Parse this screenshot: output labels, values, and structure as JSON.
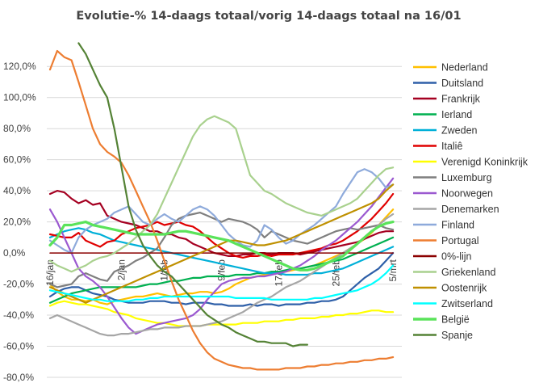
{
  "chart_data": {
    "type": "line",
    "title": "Evolutie-% 14-daags totaal/vorig 14-daags totaal na 16/01",
    "xlabel": "",
    "ylabel": "",
    "ylim": [
      -80,
      130
    ],
    "y_ticks": [
      "120,0%",
      "100,0%",
      "80,0%",
      "60,0%",
      "40,0%",
      "20,0%",
      "0,0%",
      "-20,0%",
      "-40,0%",
      "-60,0%",
      "-80,0%"
    ],
    "x_ticks": [
      {
        "label": "16/jan",
        "day": 0
      },
      {
        "label": "2/jan",
        "day": 10
      },
      {
        "label": "1/feb",
        "day": 16
      },
      {
        "label": "9/feb",
        "day": 24
      },
      {
        "label": "17/feb",
        "day": 32
      },
      {
        "label": "25/feb",
        "day": 40
      },
      {
        "label": "5/mrt",
        "day": 48
      }
    ],
    "x_range": [
      0,
      49
    ],
    "grid": true,
    "legend_position": "right",
    "series": [
      {
        "name": "Nederland",
        "color": "#ffc000",
        "values": [
          -20,
          -25,
          -28,
          -30,
          -30,
          -31,
          -30,
          -32,
          -33,
          -31,
          -30,
          -29,
          -28,
          -28,
          -27,
          -26,
          -27,
          -28,
          -27,
          -26,
          -26,
          -25,
          -25,
          -26,
          -25,
          -23,
          -20,
          -18,
          -16,
          -15,
          -14,
          -13,
          -13,
          -12,
          -11,
          -10,
          -9,
          -8,
          -6,
          -4,
          -2,
          0,
          3,
          6,
          9,
          13,
          18,
          23,
          28
        ]
      },
      {
        "name": "Duitsland",
        "color": "#2e5fa8",
        "values": [
          -28,
          -25,
          -23,
          -22,
          -22,
          -24,
          -26,
          -27,
          -28,
          -30,
          -31,
          -32,
          -32,
          -32,
          -31,
          -31,
          -31,
          -32,
          -32,
          -33,
          -32,
          -32,
          -32,
          -33,
          -33,
          -34,
          -34,
          -34,
          -33,
          -34,
          -33,
          -33,
          -34,
          -33,
          -33,
          -33,
          -32,
          -32,
          -31,
          -31,
          -30,
          -28,
          -24,
          -20,
          -16,
          -13,
          -10,
          -5,
          0
        ]
      },
      {
        "name": "Frankrijk",
        "color": "#a50021",
        "values": [
          38,
          40,
          39,
          35,
          32,
          34,
          31,
          32,
          24,
          22,
          20,
          19,
          18,
          16,
          14,
          14,
          12,
          12,
          10,
          9,
          6,
          4,
          2,
          0,
          -1,
          -2,
          -2,
          -1,
          -1,
          0,
          0,
          -1,
          0,
          0,
          0,
          -1,
          0,
          1,
          2,
          3,
          4,
          5,
          6,
          7,
          9,
          11,
          13,
          14,
          14
        ]
      },
      {
        "name": "Ierland",
        "color": "#00b050",
        "values": [
          -32,
          -30,
          -28,
          -26,
          -25,
          -24,
          -23,
          -22,
          -22,
          -22,
          -22,
          -22,
          -22,
          -21,
          -20,
          -20,
          -19,
          -18,
          -18,
          -17,
          -16,
          -16,
          -15,
          -15,
          -15,
          -15,
          -14,
          -14,
          -14,
          -13,
          -13,
          -12,
          -12,
          -11,
          -10,
          -10,
          -9,
          -8,
          -7,
          -6,
          -5,
          -4,
          -2,
          0,
          2,
          4,
          6,
          8,
          10
        ]
      },
      {
        "name": "Zweden",
        "color": "#00b0d8",
        "values": [
          10,
          12,
          14,
          15,
          16,
          15,
          13,
          12,
          10,
          8,
          7,
          6,
          5,
          4,
          3,
          2,
          1,
          0,
          -1,
          -2,
          -3,
          -4,
          -5,
          -6,
          -7,
          -8,
          -9,
          -10,
          -11,
          -12,
          -13,
          -13,
          -13,
          -14,
          -14,
          -14,
          -14,
          -13,
          -13,
          -12,
          -11,
          -10,
          -8,
          -6,
          -4,
          -2,
          0,
          2,
          4
        ]
      },
      {
        "name": "Italiê",
        "color": "#e00000",
        "values": [
          12,
          11,
          10,
          10,
          13,
          8,
          6,
          4,
          7,
          8,
          12,
          14,
          16,
          17,
          18,
          20,
          18,
          19,
          20,
          18,
          17,
          14,
          10,
          6,
          3,
          0,
          -2,
          -3,
          -2,
          -2,
          -1,
          -2,
          -1,
          -1,
          -1,
          0,
          1,
          2,
          3,
          5,
          6,
          8,
          11,
          14,
          18,
          22,
          27,
          32,
          38
        ]
      },
      {
        "name": "Verenigd Koninkrijk",
        "color": "#ffff00",
        "values": [
          -34,
          -32,
          -31,
          -32,
          -33,
          -33,
          -34,
          -35,
          -36,
          -38,
          -39,
          -40,
          -42,
          -43,
          -44,
          -45,
          -45,
          -46,
          -47,
          -47,
          -47,
          -47,
          -46,
          -46,
          -46,
          -46,
          -46,
          -45,
          -45,
          -45,
          -44,
          -44,
          -44,
          -43,
          -43,
          -42,
          -42,
          -42,
          -41,
          -41,
          -40,
          -40,
          -39,
          -39,
          -38,
          -37,
          -37,
          -38,
          -38
        ]
      },
      {
        "name": "Luxemburg",
        "color": "#7f7f7f",
        "values": [
          -20,
          -22,
          -21,
          -20,
          -15,
          -13,
          -15,
          -17,
          -18,
          -12,
          -10,
          -8,
          -5,
          -3,
          0,
          3,
          10,
          18,
          22,
          24,
          25,
          26,
          24,
          22,
          20,
          22,
          21,
          20,
          18,
          15,
          10,
          14,
          12,
          10,
          8,
          7,
          6,
          8,
          10,
          12,
          14,
          15,
          16,
          15,
          16,
          17,
          18,
          16,
          15
        ]
      },
      {
        "name": "Noorwegen",
        "color": "#9b59d0",
        "values": [
          28,
          20,
          10,
          0,
          -10,
          -15,
          -18,
          -22,
          -28,
          -35,
          -42,
          -48,
          -52,
          -50,
          -48,
          -46,
          -45,
          -44,
          -43,
          -42,
          -40,
          -36,
          -30,
          -25,
          -20,
          -18,
          -17,
          -16,
          -16,
          -15,
          -15,
          -14,
          -13,
          -12,
          -10,
          -8,
          -5,
          -2,
          2,
          5,
          8,
          12,
          16,
          20,
          25,
          30,
          36,
          42,
          48
        ]
      },
      {
        "name": "Denemarken",
        "color": "#a6a6a6",
        "values": [
          -42,
          -40,
          -42,
          -44,
          -46,
          -48,
          -50,
          -52,
          -53,
          -53,
          -52,
          -52,
          -51,
          -50,
          -49,
          -49,
          -48,
          -48,
          -48,
          -47,
          -47,
          -47,
          -46,
          -45,
          -44,
          -42,
          -40,
          -38,
          -35,
          -32,
          -30,
          -28,
          -25,
          -22,
          -20,
          -18,
          -15,
          -12,
          -9,
          -6,
          -3,
          0,
          3,
          6,
          10,
          14,
          18,
          22,
          25
        ]
      },
      {
        "name": "Finland",
        "color": "#8eaadb",
        "values": [
          8,
          5,
          2,
          0,
          10,
          15,
          18,
          20,
          22,
          26,
          28,
          30,
          25,
          20,
          18,
          22,
          25,
          22,
          20,
          24,
          28,
          30,
          28,
          24,
          18,
          12,
          8,
          5,
          4,
          8,
          18,
          15,
          10,
          6,
          8,
          12,
          15,
          18,
          22,
          26,
          30,
          38,
          45,
          52,
          54,
          52,
          48,
          42,
          44
        ]
      },
      {
        "name": "Portugal",
        "color": "#ed7d31",
        "values": [
          118,
          130,
          126,
          124,
          110,
          95,
          80,
          70,
          65,
          62,
          58,
          50,
          40,
          30,
          20,
          8,
          -5,
          -18,
          -30,
          -40,
          -50,
          -58,
          -64,
          -68,
          -70,
          -72,
          -73,
          -74,
          -74,
          -75,
          -75,
          -75,
          -75,
          -74,
          -74,
          -74,
          -73,
          -73,
          -72,
          -72,
          -71,
          -71,
          -70,
          -70,
          -69,
          -69,
          -68,
          -68,
          -67
        ]
      },
      {
        "name": "0%-lijn",
        "color": "#8b0000",
        "values": [
          0,
          0,
          0,
          0,
          0,
          0,
          0,
          0,
          0,
          0,
          0,
          0,
          0,
          0,
          0,
          0,
          0,
          0,
          0,
          0,
          0,
          0,
          0,
          0,
          0,
          0,
          0,
          0,
          0,
          0,
          0,
          0,
          0,
          0,
          0,
          0,
          0,
          0,
          0,
          0,
          0,
          0,
          0,
          0,
          0,
          0,
          0,
          0,
          0
        ]
      },
      {
        "name": "Griekenland",
        "color": "#a9d18e",
        "values": [
          -5,
          -8,
          -10,
          -12,
          -10,
          -8,
          -5,
          -3,
          -2,
          0,
          3,
          6,
          10,
          14,
          18,
          25,
          35,
          45,
          55,
          65,
          75,
          82,
          86,
          88,
          86,
          84,
          80,
          65,
          50,
          45,
          40,
          38,
          35,
          32,
          30,
          28,
          26,
          25,
          24,
          26,
          28,
          30,
          32,
          35,
          40,
          45,
          50,
          54,
          55
        ]
      },
      {
        "name": "Oostenrijk",
        "color": "#bf9000",
        "values": [
          -22,
          -24,
          -26,
          -28,
          -30,
          -32,
          -30,
          -28,
          -26,
          -24,
          -22,
          -20,
          -18,
          -16,
          -14,
          -12,
          -10,
          -8,
          -6,
          -4,
          -2,
          0,
          2,
          4,
          6,
          8,
          8,
          7,
          6,
          5,
          5,
          6,
          7,
          8,
          10,
          12,
          14,
          16,
          18,
          20,
          22,
          24,
          26,
          28,
          30,
          32,
          35,
          40,
          44
        ]
      },
      {
        "name": "Zwitserland",
        "color": "#00ffff",
        "values": [
          -24,
          -25,
          -26,
          -27,
          -28,
          -29,
          -30,
          -30,
          -31,
          -31,
          -31,
          -31,
          -30,
          -30,
          -29,
          -29,
          -28,
          -28,
          -28,
          -28,
          -28,
          -28,
          -28,
          -28,
          -28,
          -28,
          -29,
          -29,
          -29,
          -29,
          -29,
          -30,
          -30,
          -30,
          -30,
          -30,
          -30,
          -29,
          -29,
          -28,
          -27,
          -26,
          -25,
          -24,
          -22,
          -20,
          -17,
          -13,
          -8
        ]
      },
      {
        "name": "België",
        "color": "#5ae35a",
        "values": [
          5,
          10,
          18,
          18,
          19,
          20,
          18,
          17,
          16,
          15,
          14,
          13,
          12,
          12,
          12,
          12,
          12,
          13,
          14,
          14,
          13,
          12,
          11,
          10,
          9,
          8,
          6,
          4,
          2,
          0,
          -2,
          -4,
          -6,
          -8,
          -10,
          -11,
          -11,
          -10,
          -8,
          -6,
          -4,
          -2,
          2,
          6,
          10,
          14,
          17,
          19,
          20
        ]
      },
      {
        "name": "Spanje",
        "color": "#548235",
        "values": [
          null,
          null,
          null,
          null,
          135,
          128,
          118,
          108,
          100,
          80,
          55,
          30,
          15,
          5,
          -2,
          -8,
          -12,
          -15,
          -20,
          -25,
          -30,
          -35,
          -40,
          -43,
          -46,
          -48,
          -51,
          -53,
          -55,
          -57,
          -57,
          -58,
          -58,
          -58,
          -60,
          -59,
          -59,
          null,
          null,
          null,
          null,
          null,
          null,
          null,
          null,
          null,
          null,
          null,
          null
        ]
      }
    ]
  }
}
